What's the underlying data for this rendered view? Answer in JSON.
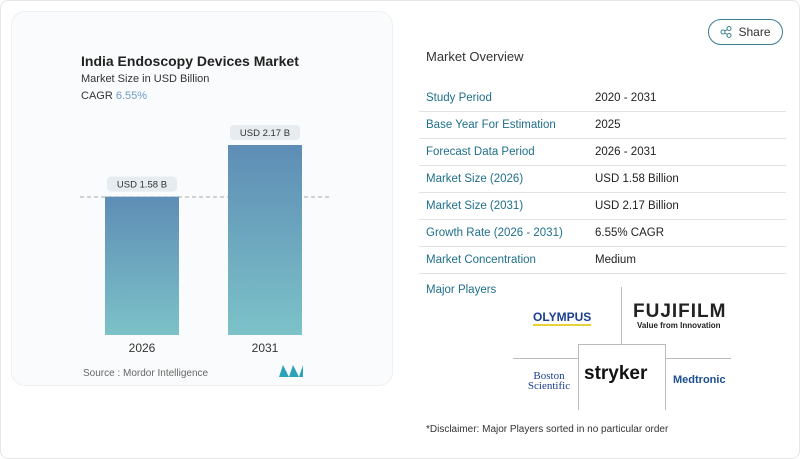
{
  "share_label": "Share",
  "chart_data": {
    "type": "bar",
    "title": "India Endoscopy Devices Market",
    "subtitle": "Market Size in USD Billion",
    "cagr_label": "CAGR",
    "cagr_value": "6.55%",
    "categories": [
      "2026",
      "2031"
    ],
    "values": [
      1.58,
      2.17
    ],
    "data_labels": [
      "USD 1.58 B",
      "USD 2.17 B"
    ],
    "source": "Source :  Mordor Intelligence",
    "colors": {
      "bar_top": "#5e8db5",
      "bar_bottom": "#7cc2c8"
    }
  },
  "overview": {
    "heading": "Market Overview",
    "rows": [
      {
        "label": "Study Period",
        "value": "2020 - 2031"
      },
      {
        "label": "Base Year For Estimation",
        "value": "2025"
      },
      {
        "label": "Forecast Data Period",
        "value": "2026 - 2031"
      },
      {
        "label": "Market Size (2026)",
        "value": "USD 1.58 Billion"
      },
      {
        "label": "Market Size (2031)",
        "value": "USD 2.17 Billion"
      },
      {
        "label": "Growth Rate (2026 - 2031)",
        "value": "6.55% CAGR"
      },
      {
        "label": "Market Concentration",
        "value": "Medium"
      }
    ],
    "major_players_label": "Major Players",
    "players": [
      "OLYMPUS",
      "FUJIFILM",
      "Boston Scientific",
      "stryker",
      "Medtronic"
    ],
    "fujifilm_tagline": "Value from Innovation",
    "disclaimer": "*Disclaimer: Major Players sorted in no particular order"
  }
}
